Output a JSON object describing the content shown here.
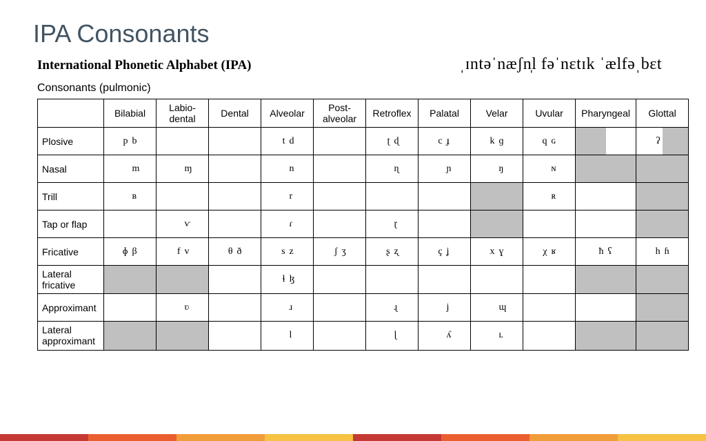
{
  "title": "IPA Consonants",
  "chart_title": "International Phonetic Alphabet (IPA)",
  "ipa_pronunciation": "ˌɪntəˈnæʃn̩l fəˈnɛtɪk ˈælfəˌbɛt",
  "sub_heading": "Consonants (pulmonic)",
  "colors": {
    "title": "#425462",
    "border": "#000000",
    "impossible_bg": "#c0c0c0",
    "footer": [
      "#c53934",
      "#eb5f2f",
      "#f19d39",
      "#f5c242",
      "#c53934",
      "#eb5f2f",
      "#f19d39",
      "#f5c242"
    ]
  },
  "places": [
    "Bilabial",
    "Labio-\ndental",
    "Dental",
    "Alveolar",
    "Post-\nalveolar",
    "Retroflex",
    "Palatal",
    "Velar",
    "Uvular",
    "Pharyngeal",
    "Glottal"
  ],
  "manners": [
    "Plosive",
    "Nasal",
    "Trill",
    "Tap or flap",
    "Fricative",
    "Lateral\nfricative",
    "Approximant",
    "Lateral\napproximant"
  ],
  "cells": {
    "Plosive": {
      "Bilabial": [
        "p",
        "b"
      ],
      "Alveolar": [
        "t",
        "d"
      ],
      "Retroflex": [
        "ʈ",
        "ɖ"
      ],
      "Palatal": [
        "c",
        "ɟ"
      ],
      "Velar": [
        "k",
        "ɡ"
      ],
      "Uvular": [
        "q",
        "ɢ"
      ],
      "Pharyngeal": [
        "#",
        ""
      ],
      "Glottal": [
        "ʔ",
        "#"
      ]
    },
    "Nasal": {
      "Bilabial": [
        "",
        "m"
      ],
      "Labio-\ndental": [
        "",
        "ɱ"
      ],
      "Alveolar": [
        "",
        "n"
      ],
      "Retroflex": [
        "",
        "ɳ"
      ],
      "Palatal": [
        "",
        "ɲ"
      ],
      "Velar": [
        "",
        "ŋ"
      ],
      "Uvular": [
        "",
        "ɴ"
      ],
      "Pharyngeal": [
        "#",
        "#"
      ],
      "Glottal": [
        "#",
        "#"
      ]
    },
    "Trill": {
      "Bilabial": [
        "",
        "ʙ"
      ],
      "Alveolar": [
        "",
        "r"
      ],
      "Uvular": [
        "",
        "ʀ"
      ],
      "Velar": [
        "#",
        "#"
      ],
      "Glottal": [
        "#",
        "#"
      ]
    },
    "Tap or flap": {
      "Labio-\ndental": [
        "",
        "ⱱ"
      ],
      "Alveolar": [
        "",
        "ɾ"
      ],
      "Retroflex": [
        "",
        "ɽ"
      ],
      "Velar": [
        "#",
        "#"
      ],
      "Glottal": [
        "#",
        "#"
      ]
    },
    "Fricative": {
      "Bilabial": [
        "ɸ",
        "β"
      ],
      "Labio-\ndental": [
        "f",
        "v"
      ],
      "Dental": [
        "θ",
        "ð"
      ],
      "Alveolar": [
        "s",
        "z"
      ],
      "Post-\nalveolar": [
        "ʃ",
        "ʒ"
      ],
      "Retroflex": [
        "ʂ",
        "ʐ"
      ],
      "Palatal": [
        "ç",
        "ʝ"
      ],
      "Velar": [
        "x",
        "ɣ"
      ],
      "Uvular": [
        "χ",
        "ʁ"
      ],
      "Pharyngeal": [
        "ħ",
        "ʕ"
      ],
      "Glottal": [
        "h",
        "ɦ"
      ]
    },
    "Lateral\nfricative": {
      "Alveolar": [
        "ɬ",
        "ɮ"
      ],
      "Bilabial": [
        "#",
        "#"
      ],
      "Labio-\ndental": [
        "#",
        "#"
      ],
      "Pharyngeal": [
        "#",
        "#"
      ],
      "Glottal": [
        "#",
        "#"
      ]
    },
    "Approximant": {
      "Labio-\ndental": [
        "",
        "ʋ"
      ],
      "Alveolar": [
        "",
        "ɹ"
      ],
      "Retroflex": [
        "",
        "ɻ"
      ],
      "Palatal": [
        "",
        "j"
      ],
      "Velar": [
        "",
        "ɰ"
      ],
      "Glottal": [
        "#",
        "#"
      ]
    },
    "Lateral\napproximant": {
      "Alveolar": [
        "",
        "l"
      ],
      "Retroflex": [
        "",
        "ɭ"
      ],
      "Palatal": [
        "",
        "ʎ"
      ],
      "Velar": [
        "",
        "ʟ"
      ],
      "Bilabial": [
        "#",
        "#"
      ],
      "Labio-\ndental": [
        "#",
        "#"
      ],
      "Pharyngeal": [
        "#",
        "#"
      ],
      "Glottal": [
        "#",
        "#"
      ]
    }
  }
}
